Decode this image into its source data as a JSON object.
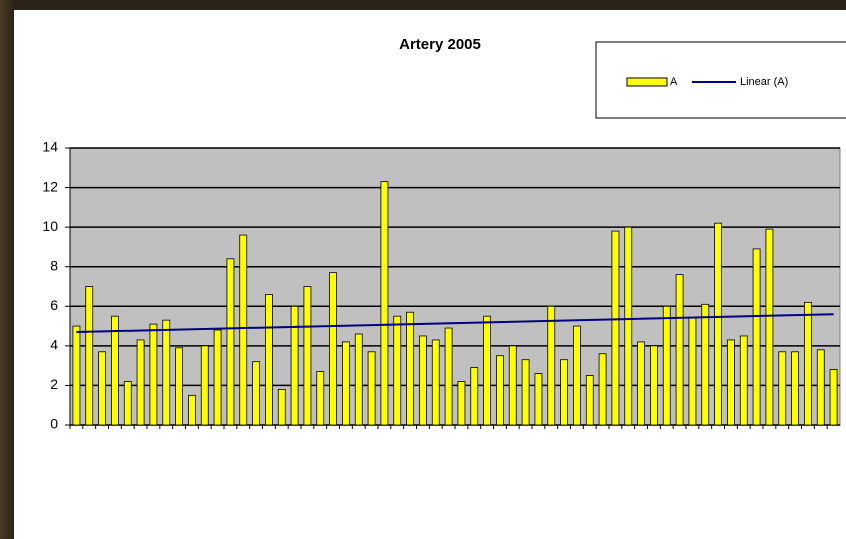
{
  "chart_data": {
    "type": "bar",
    "title": "Artery 2005",
    "categories": [
      null,
      null,
      null,
      null,
      null,
      null,
      null,
      null,
      null,
      null,
      null,
      null,
      null,
      null,
      null,
      null,
      null,
      null,
      null,
      null,
      null,
      null,
      null,
      null,
      null,
      null,
      null,
      null,
      null,
      null,
      null,
      null,
      null,
      null,
      null,
      null,
      null,
      null,
      null,
      null,
      null,
      null,
      null,
      null,
      null,
      null,
      null,
      null,
      null,
      null,
      null,
      null,
      null,
      null,
      null,
      null,
      null,
      null,
      null,
      null
    ],
    "series": [
      {
        "name": "A",
        "color": "#ffff00",
        "values": [
          5.0,
          7.0,
          3.7,
          5.5,
          2.2,
          4.3,
          5.1,
          5.3,
          3.9,
          1.5,
          4.0,
          4.8,
          8.4,
          9.6,
          3.2,
          6.6,
          1.8,
          6.0,
          7.0,
          2.7,
          7.7,
          4.2,
          4.6,
          3.7,
          12.3,
          5.5,
          5.7,
          4.5,
          4.3,
          4.9,
          2.2,
          2.9,
          5.5,
          3.5,
          4.0,
          3.3,
          2.6,
          6.0,
          3.3,
          5.0,
          2.5,
          3.6,
          9.8,
          10.0,
          4.2,
          4.0,
          6.0,
          7.6,
          5.4,
          6.1,
          10.2,
          4.3,
          4.5,
          8.9,
          9.9,
          3.7,
          3.7,
          6.2,
          3.8,
          2.8
        ]
      }
    ],
    "trendline": {
      "name": "Linear (A)",
      "color": "#000080",
      "values": [
        4.7,
        5.6
      ]
    },
    "ylim": [
      0,
      14
    ],
    "yticks": [
      0,
      2,
      4,
      6,
      8,
      10,
      12,
      14
    ],
    "grid": true
  }
}
